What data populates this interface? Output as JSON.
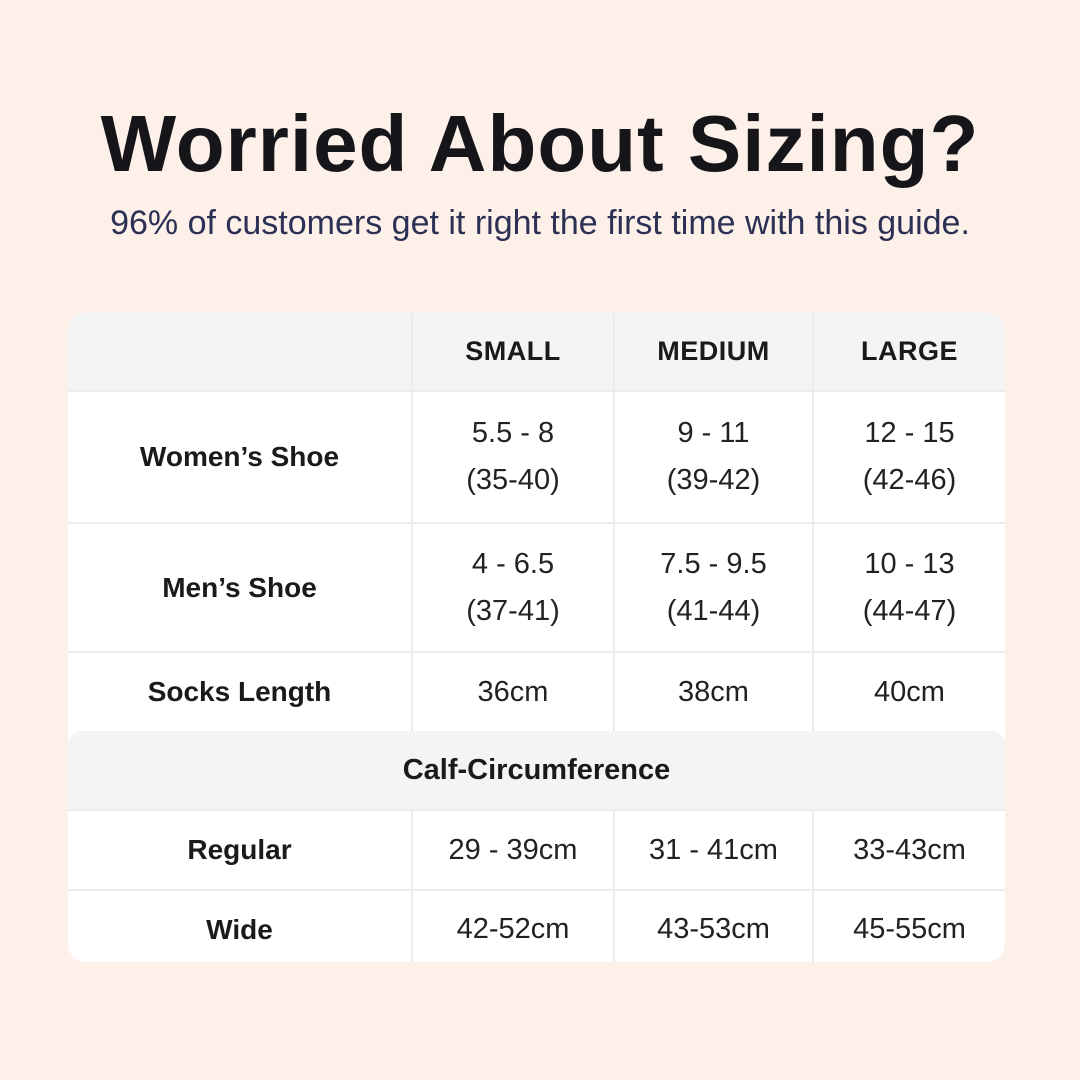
{
  "page": {
    "background_color": "#fcf0e8",
    "card_color": "#ffffff",
    "band_color": "#f4f4f4",
    "title_color": "#15151a",
    "subtitle_color": "#2b3054"
  },
  "header": {
    "title": "Worried About Sizing?",
    "subtitle": "96% of customers get it right the first time with this guide."
  },
  "table": {
    "headers": [
      "SMALL",
      "MEDIUM",
      "LARGE"
    ],
    "shoe_rows": [
      {
        "label": "Women’s Shoe",
        "cells": [
          {
            "range": "5.5 - 8",
            "eu": "(35-40)"
          },
          {
            "range": "9 - 11",
            "eu": "(39-42)"
          },
          {
            "range": "12 - 15",
            "eu": "(42-46)"
          }
        ]
      },
      {
        "label": "Men’s Shoe",
        "cells": [
          {
            "range": "4 - 6.5",
            "eu": "(37-41)"
          },
          {
            "range": "7.5 - 9.5",
            "eu": "(41-44)"
          },
          {
            "range": "10 - 13",
            "eu": "(44-47)"
          }
        ]
      }
    ],
    "socks_row": {
      "label": "Socks Length",
      "cells": [
        "36cm",
        "38cm",
        "40cm"
      ]
    },
    "calf_section": {
      "title": "Calf-Circumference",
      "rows": [
        {
          "label": "Regular",
          "cells": [
            "29 - 39cm",
            "31 - 41cm",
            "33-43cm"
          ]
        },
        {
          "label": "Wide",
          "cells": [
            "42-52cm",
            "43-53cm",
            "45-55cm"
          ]
        }
      ]
    }
  },
  "chart_data": {
    "type": "table",
    "title": "Worried About Sizing?",
    "subtitle": "96% of customers get it right the first time with this guide.",
    "columns": [
      "",
      "SMALL",
      "MEDIUM",
      "LARGE"
    ],
    "rows": [
      [
        "Women’s Shoe",
        "5.5 - 8 (35-40)",
        "9 - 11 (39-42)",
        "12 - 15 (42-46)"
      ],
      [
        "Men’s Shoe",
        "4 - 6.5 (37-41)",
        "7.5 - 9.5 (41-44)",
        "10 - 13 (44-47)"
      ],
      [
        "Socks Length",
        "36cm",
        "38cm",
        "40cm"
      ],
      [
        "Calf-Circumference",
        "",
        "",
        ""
      ],
      [
        "Regular",
        "29 - 39cm",
        "31 - 41cm",
        "33-43cm"
      ],
      [
        "Wide",
        "42-52cm",
        "43-53cm",
        "45-55cm"
      ]
    ]
  }
}
